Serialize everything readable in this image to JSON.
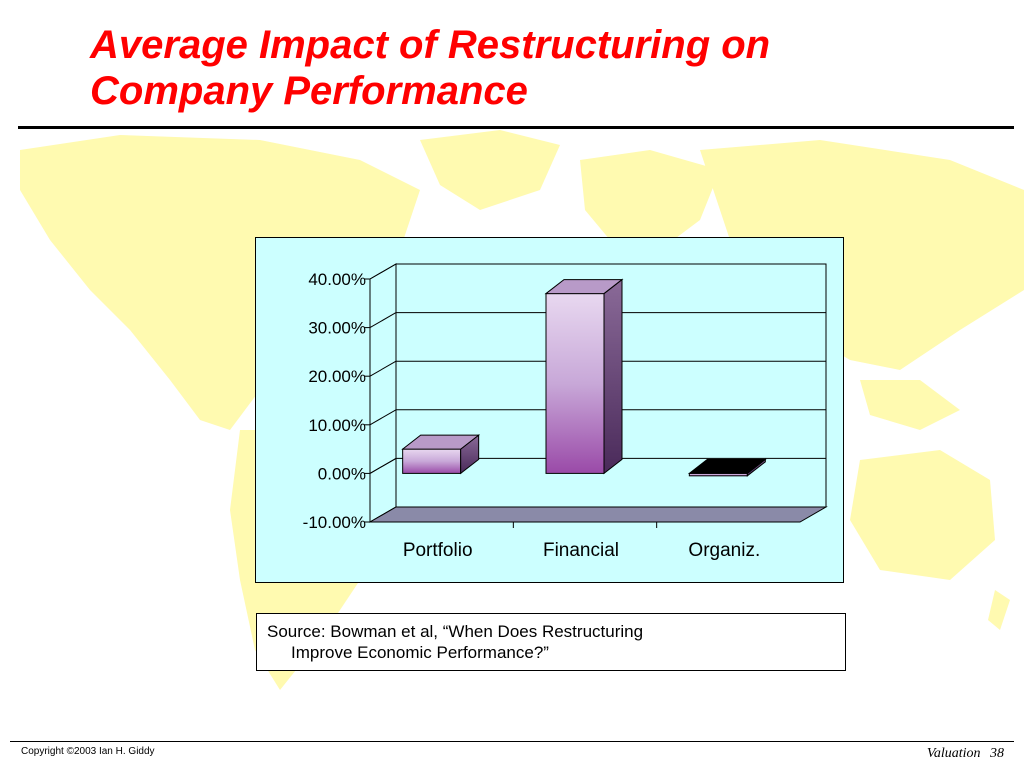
{
  "slide": {
    "title_lines": [
      "Average Impact of Restructuring on",
      "Company Performance"
    ],
    "title_color": "#ff0000",
    "background_map_color": "#fffab0"
  },
  "chart_data": {
    "type": "bar",
    "style": "3d-column",
    "categories": [
      "Portfolio",
      "Financial",
      "Organiz."
    ],
    "values": [
      5.0,
      37.0,
      -0.5
    ],
    "yticks": [
      "40.00%",
      "30.00%",
      "20.00%",
      "10.00%",
      "0.00%",
      "-10.00%"
    ],
    "ylim": [
      -10,
      40
    ],
    "grid": true,
    "legend": "none",
    "plot_background": "#ccffff",
    "bar_color": "#a060b0",
    "floor_color": "#8a8aa8"
  },
  "source": {
    "line1": "Source: Bowman et al, “When Does Restructuring",
    "line2": "Improve Economic Performance?”"
  },
  "footer": {
    "copyright": "Copyright ©2003 Ian H. Giddy",
    "section": "Valuation",
    "page": "38"
  }
}
